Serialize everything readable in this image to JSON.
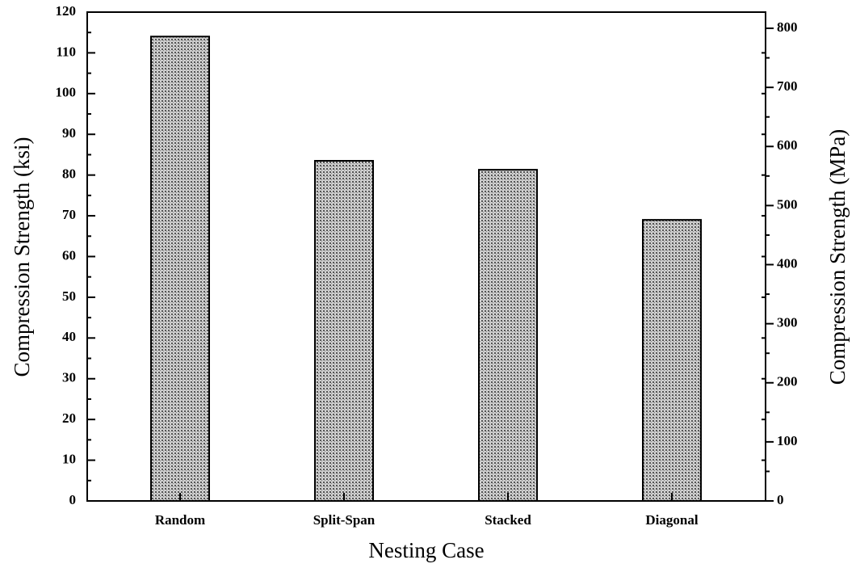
{
  "chart_data": {
    "type": "bar",
    "x_label": "Nesting Case",
    "y_label": "Compression Strength (ksi)",
    "y2_label": "Compression Strength (MPa)",
    "categories": [
      "Random",
      "Split-Span",
      "Stacked",
      "Diagonal"
    ],
    "values": [
      114,
      83.5,
      81.3,
      69
    ],
    "color": "#9a9a9a",
    "ylim": [
      0,
      120
    ],
    "yticks": [
      0,
      10,
      20,
      30,
      40,
      50,
      60,
      70,
      80,
      90,
      100,
      110,
      120
    ],
    "y2lim": [
      0,
      827.4
    ],
    "y2ticks": [
      0,
      100,
      200,
      300,
      400,
      500,
      600,
      700,
      800
    ],
    "grid": false
  }
}
